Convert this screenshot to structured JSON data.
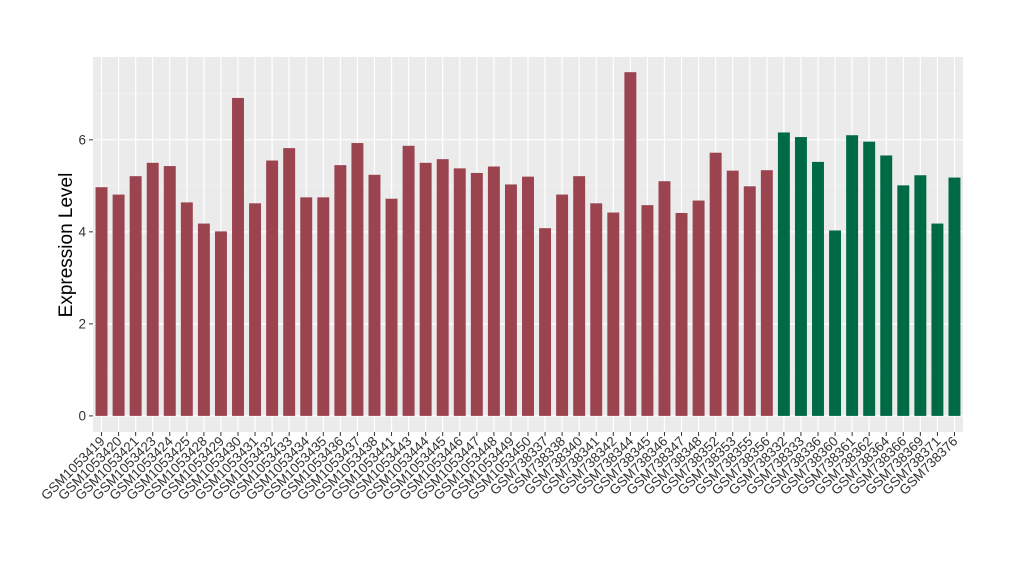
{
  "chart_data": {
    "type": "bar",
    "title": "",
    "xlabel": "",
    "ylabel": "Expression Level",
    "ylim": [
      -0.35,
      7.8
    ],
    "yticks": [
      0,
      2,
      4,
      6
    ],
    "grid": true,
    "colors": {
      "group1": "#9b4450",
      "group2": "#006a45",
      "panel": "#ebebeb",
      "grid_major": "#ffffff"
    },
    "categories": [
      "GSM1053419",
      "GSM1053420",
      "GSM1053421",
      "GSM1053423",
      "GSM1053424",
      "GSM1053425",
      "GSM1053428",
      "GSM1053429",
      "GSM1053430",
      "GSM1053431",
      "GSM1053432",
      "GSM1053433",
      "GSM1053434",
      "GSM1053435",
      "GSM1053436",
      "GSM1053437",
      "GSM1053438",
      "GSM1053441",
      "GSM1053443",
      "GSM1053444",
      "GSM1053445",
      "GSM1053446",
      "GSM1053447",
      "GSM1053448",
      "GSM1053449",
      "GSM1053450",
      "GSM738337",
      "GSM738338",
      "GSM738340",
      "GSM738341",
      "GSM738342",
      "GSM738344",
      "GSM738345",
      "GSM738346",
      "GSM738347",
      "GSM738348",
      "GSM738352",
      "GSM738353",
      "GSM738355",
      "GSM738356",
      "GSM738332",
      "GSM738333",
      "GSM738336",
      "GSM738360",
      "GSM738361",
      "GSM738362",
      "GSM738364",
      "GSM738366",
      "GSM738369",
      "GSM738371",
      "GSM738376"
    ],
    "values": [
      4.97,
      4.81,
      5.21,
      5.5,
      5.43,
      4.64,
      4.18,
      4.01,
      6.91,
      4.62,
      5.55,
      5.82,
      4.75,
      4.75,
      5.45,
      5.93,
      5.24,
      4.72,
      5.87,
      5.5,
      5.58,
      5.38,
      5.28,
      5.42,
      5.03,
      5.2,
      4.08,
      4.81,
      5.21,
      4.62,
      4.42,
      7.47,
      4.58,
      5.1,
      4.41,
      4.68,
      5.72,
      5.33,
      4.99,
      5.34,
      6.16,
      6.06,
      5.52,
      4.03,
      6.1,
      5.96,
      5.66,
      5.01,
      5.23,
      4.18,
      5.18
    ],
    "groups": [
      "group1",
      "group1",
      "group1",
      "group1",
      "group1",
      "group1",
      "group1",
      "group1",
      "group1",
      "group1",
      "group1",
      "group1",
      "group1",
      "group1",
      "group1",
      "group1",
      "group1",
      "group1",
      "group1",
      "group1",
      "group1",
      "group1",
      "group1",
      "group1",
      "group1",
      "group1",
      "group1",
      "group1",
      "group1",
      "group1",
      "group1",
      "group1",
      "group1",
      "group1",
      "group1",
      "group1",
      "group1",
      "group1",
      "group1",
      "group1",
      "group2",
      "group2",
      "group2",
      "group2",
      "group2",
      "group2",
      "group2",
      "group2",
      "group2",
      "group2",
      "group2"
    ]
  }
}
